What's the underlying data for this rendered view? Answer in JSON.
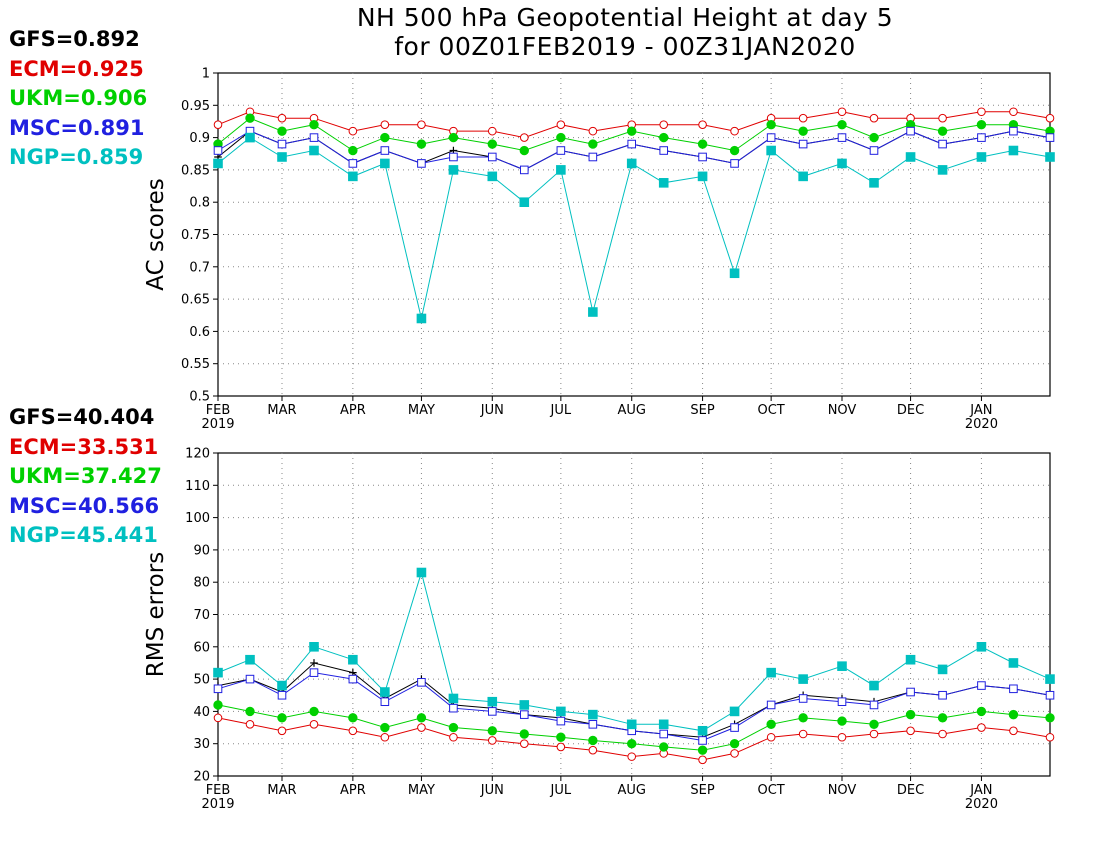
{
  "title": {
    "line1": "NH 500 hPa Geopotential Height at day 5",
    "line2": "for 00Z01FEB2019 - 00Z31JAN2020"
  },
  "ac_stats": [
    {
      "label": "GFS=0.892",
      "color": "#000000"
    },
    {
      "label": "ECM=0.925",
      "color": "#e00000"
    },
    {
      "label": "UKM=0.906",
      "color": "#00d000"
    },
    {
      "label": "MSC=0.891",
      "color": "#2020e0"
    },
    {
      "label": "NGP=0.859",
      "color": "#00c0c0"
    }
  ],
  "rms_stats": [
    {
      "label": "GFS=40.404",
      "color": "#000000"
    },
    {
      "label": "ECM=33.531",
      "color": "#e00000"
    },
    {
      "label": "UKM=37.427",
      "color": "#00d000"
    },
    {
      "label": "MSC=40.566",
      "color": "#2020e0"
    },
    {
      "label": "NGP=45.441",
      "color": "#00c0c0"
    }
  ],
  "chart_data": [
    {
      "type": "line",
      "ylabel": "AC scores",
      "ylim": [
        0.5,
        1
      ],
      "yticks": [
        "0.5",
        "0.55",
        "0.6",
        "0.65",
        "0.7",
        "0.75",
        "0.8",
        "0.85",
        "0.9",
        "0.95",
        "1"
      ],
      "xticks": [
        {
          "label": "FEB",
          "sub": "2019"
        },
        {
          "label": "MAR",
          "sub": ""
        },
        {
          "label": "APR",
          "sub": ""
        },
        {
          "label": "MAY",
          "sub": ""
        },
        {
          "label": "JUN",
          "sub": ""
        },
        {
          "label": "JUL",
          "sub": ""
        },
        {
          "label": "AUG",
          "sub": ""
        },
        {
          "label": "SEP",
          "sub": ""
        },
        {
          "label": "OCT",
          "sub": ""
        },
        {
          "label": "NOV",
          "sub": ""
        },
        {
          "label": "DEC",
          "sub": ""
        },
        {
          "label": "JAN",
          "sub": "2020"
        }
      ],
      "x_dates": [
        "2019-02-01",
        "2019-02-15",
        "2019-03-01",
        "2019-03-15",
        "2019-04-01",
        "2019-04-15",
        "2019-05-01",
        "2019-05-15",
        "2019-06-01",
        "2019-06-15",
        "2019-07-01",
        "2019-07-15",
        "2019-08-01",
        "2019-08-15",
        "2019-09-01",
        "2019-09-15",
        "2019-10-01",
        "2019-10-15",
        "2019-11-01",
        "2019-11-15",
        "2019-12-01",
        "2019-12-15",
        "2020-01-01",
        "2020-01-15",
        "2020-01-31"
      ],
      "grid": true,
      "series": [
        {
          "name": "GFS",
          "color": "#000000",
          "marker": "plus",
          "values": [
            0.87,
            0.91,
            0.89,
            0.9,
            0.86,
            0.88,
            0.86,
            0.88,
            0.87,
            0.85,
            0.88,
            0.87,
            0.89,
            0.88,
            0.87,
            0.86,
            0.9,
            0.89,
            0.9,
            0.88,
            0.91,
            0.89,
            0.9,
            0.91,
            0.9
          ]
        },
        {
          "name": "ECM",
          "color": "#e00000",
          "marker": "circle-open",
          "values": [
            0.92,
            0.94,
            0.93,
            0.93,
            0.91,
            0.92,
            0.92,
            0.91,
            0.91,
            0.9,
            0.92,
            0.91,
            0.92,
            0.92,
            0.92,
            0.91,
            0.93,
            0.93,
            0.94,
            0.93,
            0.93,
            0.93,
            0.94,
            0.94,
            0.93
          ]
        },
        {
          "name": "UKM",
          "color": "#00d000",
          "marker": "circle-filled",
          "values": [
            0.89,
            0.93,
            0.91,
            0.92,
            0.88,
            0.9,
            0.89,
            0.9,
            0.89,
            0.88,
            0.9,
            0.89,
            0.91,
            0.9,
            0.89,
            0.88,
            0.92,
            0.91,
            0.92,
            0.9,
            0.92,
            0.91,
            0.92,
            0.92,
            0.91
          ]
        },
        {
          "name": "MSC",
          "color": "#2020e0",
          "marker": "square-open",
          "values": [
            0.88,
            0.91,
            0.89,
            0.9,
            0.86,
            0.88,
            0.86,
            0.87,
            0.87,
            0.85,
            0.88,
            0.87,
            0.89,
            0.88,
            0.87,
            0.86,
            0.9,
            0.89,
            0.9,
            0.88,
            0.91,
            0.89,
            0.9,
            0.91,
            0.9
          ]
        },
        {
          "name": "NGP",
          "color": "#00c0c0",
          "marker": "square-filled",
          "values": [
            0.86,
            0.9,
            0.87,
            0.88,
            0.84,
            0.86,
            0.62,
            0.85,
            0.84,
            0.8,
            0.85,
            0.63,
            0.86,
            0.83,
            0.84,
            0.69,
            0.88,
            0.84,
            0.86,
            0.83,
            0.87,
            0.85,
            0.87,
            0.88,
            0.87
          ]
        }
      ]
    },
    {
      "type": "line",
      "ylabel": "RMS errors",
      "ylim": [
        20,
        120
      ],
      "yticks": [
        "20",
        "30",
        "40",
        "50",
        "60",
        "70",
        "80",
        "90",
        "100",
        "110",
        "120"
      ],
      "xticks": [
        {
          "label": "FEB",
          "sub": "2019"
        },
        {
          "label": "MAR",
          "sub": ""
        },
        {
          "label": "APR",
          "sub": ""
        },
        {
          "label": "MAY",
          "sub": ""
        },
        {
          "label": "JUN",
          "sub": ""
        },
        {
          "label": "JUL",
          "sub": ""
        },
        {
          "label": "AUG",
          "sub": ""
        },
        {
          "label": "SEP",
          "sub": ""
        },
        {
          "label": "OCT",
          "sub": ""
        },
        {
          "label": "NOV",
          "sub": ""
        },
        {
          "label": "DEC",
          "sub": ""
        },
        {
          "label": "JAN",
          "sub": "2020"
        }
      ],
      "x_dates": [
        "2019-02-01",
        "2019-02-15",
        "2019-03-01",
        "2019-03-15",
        "2019-04-01",
        "2019-04-15",
        "2019-05-01",
        "2019-05-15",
        "2019-06-01",
        "2019-06-15",
        "2019-07-01",
        "2019-07-15",
        "2019-08-01",
        "2019-08-15",
        "2019-09-01",
        "2019-09-15",
        "2019-10-01",
        "2019-10-15",
        "2019-11-01",
        "2019-11-15",
        "2019-12-01",
        "2019-12-15",
        "2020-01-01",
        "2020-01-15",
        "2020-01-31"
      ],
      "grid": true,
      "series": [
        {
          "name": "GFS",
          "color": "#000000",
          "marker": "plus",
          "values": [
            48,
            50,
            46,
            55,
            52,
            44,
            50,
            42,
            41,
            39,
            38,
            36,
            34,
            33,
            32,
            36,
            42,
            45,
            44,
            43,
            46,
            45,
            48,
            47,
            45
          ]
        },
        {
          "name": "ECM",
          "color": "#e00000",
          "marker": "circle-open",
          "values": [
            38,
            36,
            34,
            36,
            34,
            32,
            35,
            32,
            31,
            30,
            29,
            28,
            26,
            27,
            25,
            27,
            32,
            33,
            32,
            33,
            34,
            33,
            35,
            34,
            32
          ]
        },
        {
          "name": "UKM",
          "color": "#00d000",
          "marker": "circle-filled",
          "values": [
            42,
            40,
            38,
            40,
            38,
            35,
            38,
            35,
            34,
            33,
            32,
            31,
            30,
            29,
            28,
            30,
            36,
            38,
            37,
            36,
            39,
            38,
            40,
            39,
            38
          ]
        },
        {
          "name": "MSC",
          "color": "#2020e0",
          "marker": "square-open",
          "values": [
            47,
            50,
            45,
            52,
            50,
            43,
            49,
            41,
            40,
            39,
            37,
            36,
            34,
            33,
            31,
            35,
            42,
            44,
            43,
            42,
            46,
            45,
            48,
            47,
            45
          ]
        },
        {
          "name": "NGP",
          "color": "#00c0c0",
          "marker": "square-filled",
          "values": [
            52,
            56,
            48,
            60,
            56,
            46,
            83,
            44,
            43,
            42,
            40,
            39,
            36,
            36,
            34,
            40,
            52,
            50,
            54,
            48,
            56,
            53,
            60,
            55,
            50
          ]
        }
      ]
    }
  ]
}
